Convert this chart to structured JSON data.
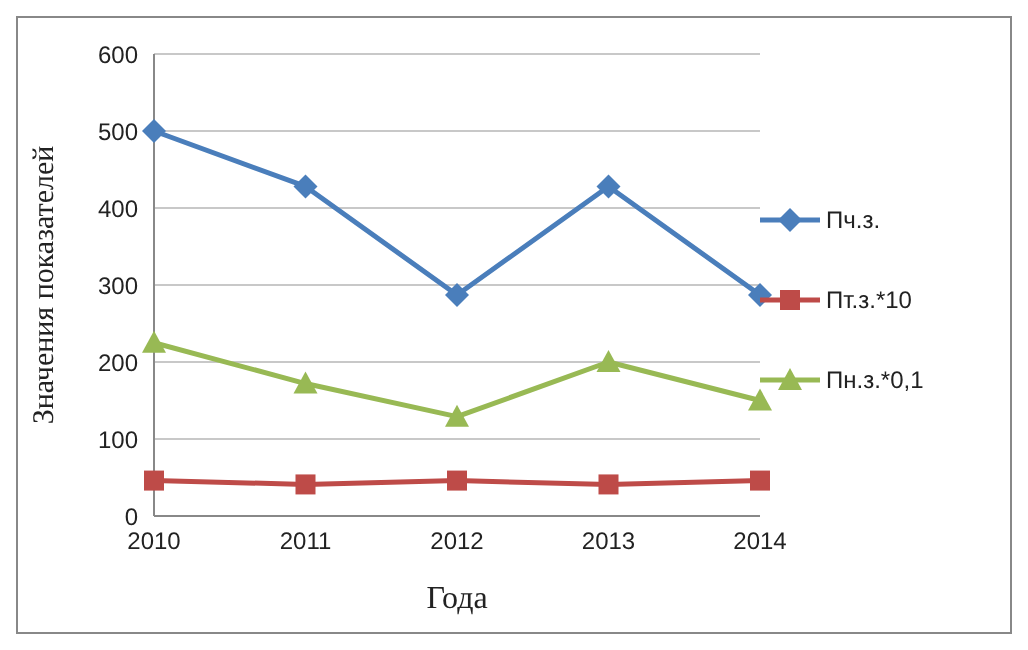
{
  "chart_data": {
    "type": "line",
    "xlabel": "Года",
    "ylabel": "Значения показателей",
    "categories": [
      "2010",
      "2011",
      "2012",
      "2013",
      "2014"
    ],
    "series": [
      {
        "name": "Пч.з.",
        "color": "#4a7ebb",
        "marker": "diamond",
        "values": [
          500,
          428,
          287,
          428,
          287
        ]
      },
      {
        "name": "Пт.з.*10",
        "color": "#be4b48",
        "marker": "square",
        "values": [
          46,
          41,
          46,
          41,
          46
        ]
      },
      {
        "name": "Пн.з.*0,1",
        "color": "#98b954",
        "marker": "triangle",
        "values": [
          225,
          172,
          129,
          200,
          150
        ]
      }
    ],
    "ylim": [
      0,
      600
    ],
    "yticks": [
      0,
      100,
      200,
      300,
      400,
      500,
      600
    ],
    "grid": "y",
    "legend": "right"
  }
}
